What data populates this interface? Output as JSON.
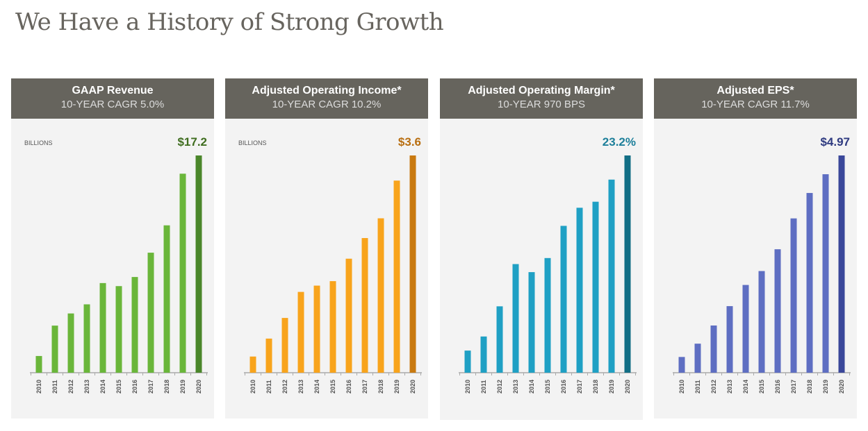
{
  "page_title": "We Have a History of Strong Growth",
  "chart_data": [
    {
      "type": "bar",
      "title": "GAAP Revenue",
      "subtitle": "10-YEAR CAGR 5.0%",
      "unit_label": "BILLIONS",
      "value_label": "$17.2",
      "categories": [
        "2010",
        "2011",
        "2012",
        "2013",
        "2014",
        "2015",
        "2016",
        "2017",
        "2018",
        "2019",
        "2020"
      ],
      "values": [
        10.6,
        11.6,
        12.0,
        12.3,
        13.0,
        12.9,
        13.2,
        14.0,
        14.9,
        16.6,
        17.2
      ],
      "ylim": [
        10.05,
        17.2
      ],
      "color": "#6ab63a",
      "last_color": "#4a862a",
      "label_color": "#3f6d1f"
    },
    {
      "type": "bar",
      "title": "Adjusted Operating Income*",
      "subtitle": "10-YEAR CAGR 10.2%",
      "unit_label": "BILLIONS",
      "value_label": "$3.6",
      "categories": [
        "2010",
        "2011",
        "2012",
        "2013",
        "2014",
        "2015",
        "2016",
        "2017",
        "2018",
        "2019",
        "2020"
      ],
      "values": [
        1.36,
        1.56,
        1.79,
        2.08,
        2.15,
        2.2,
        2.45,
        2.68,
        2.9,
        3.32,
        3.6
      ],
      "ylim": [
        1.18,
        3.6
      ],
      "color": "#f8a41c",
      "last_color": "#c97a10",
      "label_color": "#b86e10"
    },
    {
      "type": "bar",
      "title": "Adjusted Operating  Margin*",
      "subtitle": "10-YEAR 970 BPS",
      "unit_label": "",
      "value_label": "23.2%",
      "categories": [
        "2010",
        "2011",
        "2012",
        "2013",
        "2014",
        "2015",
        "2016",
        "2017",
        "2018",
        "2019",
        "2020"
      ],
      "values": [
        13.5,
        14.2,
        15.7,
        17.8,
        17.4,
        18.1,
        19.7,
        20.6,
        20.9,
        22.0,
        23.2
      ],
      "ylim": [
        12.4,
        23.2
      ],
      "color": "#1fa0c4",
      "last_color": "#126e85",
      "label_color": "#1d7f9a"
    },
    {
      "type": "bar",
      "title": "Adjusted EPS*",
      "subtitle": "10-YEAR CAGR 11.7%",
      "unit_label": "",
      "value_label": "$4.97",
      "categories": [
        "2010",
        "2011",
        "2012",
        "2013",
        "2014",
        "2015",
        "2016",
        "2017",
        "2018",
        "2019",
        "2020"
      ],
      "values": [
        1.64,
        1.86,
        2.16,
        2.48,
        2.83,
        3.06,
        3.42,
        3.93,
        4.35,
        4.66,
        4.97
      ],
      "ylim": [
        1.38,
        4.97
      ],
      "color": "#5e6ec2",
      "last_color": "#3a479a",
      "label_color": "#2e3a80"
    }
  ]
}
